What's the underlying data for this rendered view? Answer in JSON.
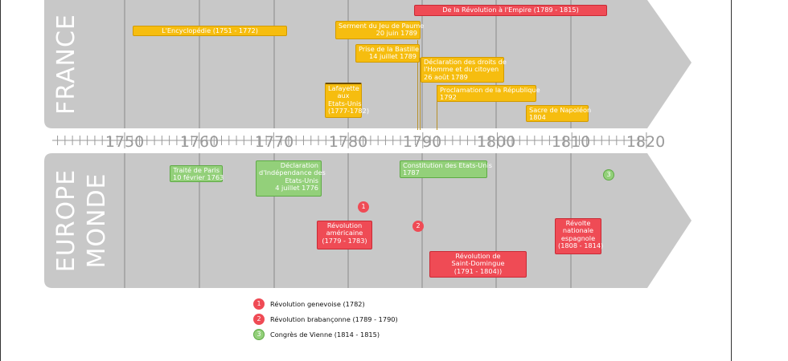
{
  "bands": {
    "france_label": "FRANCE",
    "europe_label": "EUROPE",
    "monde_label": "MONDE"
  },
  "axis": {
    "years": [
      "1750",
      "1760",
      "1770",
      "1780",
      "1790",
      "1800",
      "1810",
      "1820"
    ]
  },
  "france_events": {
    "revolution_empire": "De la Révolution à l'Empire (1789 - 1815)",
    "encyclopedie": "L'Encyclopédie (1751 - 1772)",
    "serment_line1": "Serment du Jeu de Paume",
    "serment_line2": "20 juin 1789",
    "bastille_line1": "Prise de la Bastille",
    "bastille_line2": "14 juillet 1789",
    "declaration_line1": "Déclaration des droits de",
    "declaration_line2": "l'Homme et du citoyen",
    "declaration_line3": "26 août 1789",
    "lafayette_line1": "Lafayette",
    "lafayette_line2": "aux",
    "lafayette_line3": "Etats-Unis",
    "lafayette_line4": "(1777-1782)",
    "republique_line1": "Proclamation de la République",
    "republique_line2": "1792",
    "sacre_line1": "Sacre de Napoléon",
    "sacre_line2": "1804"
  },
  "world_events": {
    "paris_line1": "Traité de Paris",
    "paris_line2": "10 février 1763",
    "independance_line1": "Déclaration",
    "independance_line2": "d'Indépendance des",
    "independance_line3": "Etats-Unis",
    "independance_line4": "4 juillet 1776",
    "constitution_line1": "Constitution des Etats-Unis",
    "constitution_line2": "1787",
    "americaine_line1": "Révolution",
    "americaine_line2": "américaine",
    "americaine_line3": "(1779 - 1783)",
    "domingue_line1": "Révolution de",
    "domingue_line2": "Saint-Domingue",
    "domingue_line3": "(1791 - 1804))",
    "espagnole_line1": "Révolte",
    "espagnole_line2": "nationale",
    "espagnole_line3": "espagnole",
    "espagnole_line4": "(1808 - 1814)",
    "marker1": "1",
    "marker2": "2",
    "marker3": "3"
  },
  "legend": [
    {
      "number": "1",
      "label": "Révolution genevoise (1782)",
      "color": "#ef4b55"
    },
    {
      "number": "2",
      "label": "Révolution brabançonne (1789 - 1790)",
      "color": "#ef4b55"
    },
    {
      "number": "3",
      "label": "Congrès de Vienne (1814 - 1815)",
      "color": "#93d07a"
    }
  ],
  "colors": {
    "band": "#c8c8c8",
    "band_line": "#8a8a8a",
    "yellow": "#f6bd0f",
    "red": "#ef4b55",
    "green": "#93d07a"
  }
}
